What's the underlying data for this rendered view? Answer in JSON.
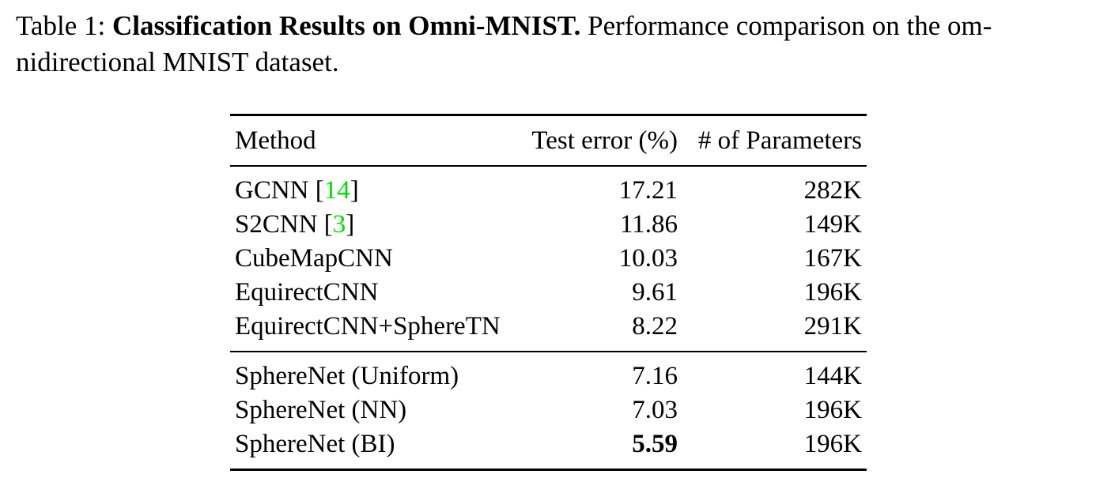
{
  "caption": {
    "label": "Table 1:",
    "title": "Classification Results on Omni-MNIST.",
    "text": "Performance comparison on the om­nidirectional MNIST dataset."
  },
  "table": {
    "headers": [
      "Method",
      "Test error (%)",
      "# of Parameters"
    ],
    "rows": [
      {
        "method": "GCNN",
        "cite": "14",
        "error": "17.21",
        "params": "282K"
      },
      {
        "method": "S2CNN",
        "cite": "3",
        "error": "11.86",
        "params": "149K"
      },
      {
        "method": "CubeMapCNN",
        "cite": "",
        "error": "10.03",
        "params": "167K"
      },
      {
        "method": "EquirectCNN",
        "cite": "",
        "error": "9.61",
        "params": "196K"
      },
      {
        "method": "EquirectCNN+SphereTN",
        "cite": "",
        "error": "8.22",
        "params": "291K"
      },
      {
        "method": "SphereNet (Uniform)",
        "cite": "",
        "error": "7.16",
        "params": "144K"
      },
      {
        "method": "SphereNet (NN)",
        "cite": "",
        "error": "7.03",
        "params": "196K"
      },
      {
        "method": "SphereNet (BI)",
        "cite": "",
        "error": "5.59",
        "params": "196K",
        "best": true
      }
    ]
  }
}
